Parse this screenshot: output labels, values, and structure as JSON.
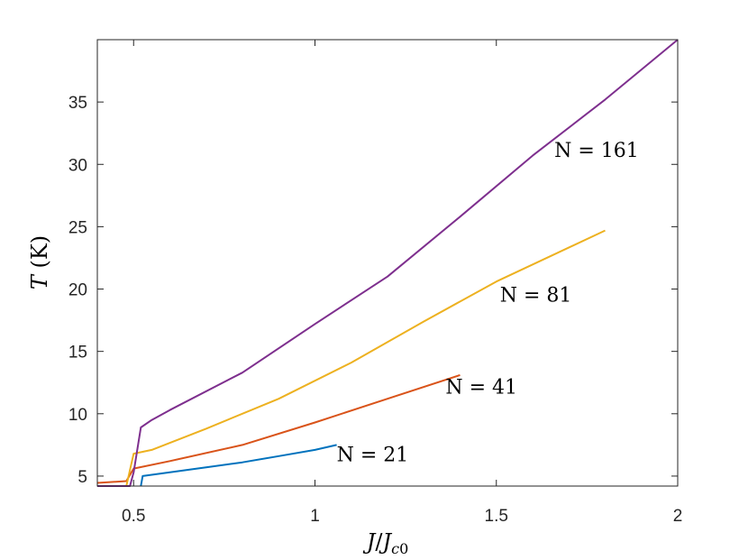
{
  "chart_data": {
    "type": "line",
    "title": "",
    "xlabel": "J/J_c0",
    "ylabel": "T (K)",
    "xlim": [
      0.4,
      2.0
    ],
    "ylim": [
      4.2,
      40
    ],
    "x_ticks": [
      0.5,
      1,
      1.5,
      2
    ],
    "x_tick_labels": [
      "0.5",
      "1",
      "1.5",
      "2"
    ],
    "y_ticks": [
      5,
      10,
      15,
      20,
      25,
      30,
      35
    ],
    "y_tick_labels": [
      "5",
      "10",
      "15",
      "20",
      "25",
      "30",
      "35"
    ],
    "grid": false,
    "legend": "none",
    "series": [
      {
        "name": "N = 21",
        "color": "#0072BD",
        "points": [
          [
            0.52,
            4.2
          ],
          [
            0.525,
            5.0
          ],
          [
            0.6,
            5.3
          ],
          [
            0.7,
            5.7
          ],
          [
            0.8,
            6.1
          ],
          [
            0.9,
            6.6
          ],
          [
            1.0,
            7.1
          ],
          [
            1.06,
            7.5
          ]
        ]
      },
      {
        "name": "N = 41",
        "color": "#D95319",
        "points": [
          [
            0.4,
            4.45
          ],
          [
            0.48,
            4.6
          ],
          [
            0.5,
            5.6
          ],
          [
            0.6,
            6.2
          ],
          [
            0.8,
            7.5
          ],
          [
            1.0,
            9.3
          ],
          [
            1.2,
            11.2
          ],
          [
            1.4,
            13.1
          ]
        ]
      },
      {
        "name": "N = 81",
        "color": "#EDB120",
        "points": [
          [
            0.4,
            4.2
          ],
          [
            0.48,
            4.2
          ],
          [
            0.5,
            6.8
          ],
          [
            0.55,
            7.1
          ],
          [
            0.7,
            8.8
          ],
          [
            0.9,
            11.2
          ],
          [
            1.1,
            14.1
          ],
          [
            1.3,
            17.4
          ],
          [
            1.5,
            20.6
          ],
          [
            1.8,
            24.7
          ]
        ]
      },
      {
        "name": "N = 161",
        "color": "#7E2F8E",
        "points": [
          [
            0.4,
            4.2
          ],
          [
            0.49,
            4.2
          ],
          [
            0.5,
            5.3
          ],
          [
            0.52,
            8.9
          ],
          [
            0.55,
            9.5
          ],
          [
            0.6,
            10.3
          ],
          [
            0.8,
            13.3
          ],
          [
            1.0,
            17.2
          ],
          [
            1.2,
            21.0
          ],
          [
            1.4,
            25.8
          ],
          [
            1.6,
            30.7
          ],
          [
            1.8,
            35.2
          ],
          [
            2.0,
            40.0
          ]
        ]
      }
    ],
    "annotations": [
      {
        "text": "N = 161",
        "x": 1.66,
        "y": 30.6
      },
      {
        "text": "N = 81",
        "x": 1.51,
        "y": 19.0
      },
      {
        "text": "N = 41",
        "x": 1.36,
        "y": 11.6
      },
      {
        "text": "N = 21",
        "x": 1.06,
        "y": 6.2
      }
    ]
  }
}
